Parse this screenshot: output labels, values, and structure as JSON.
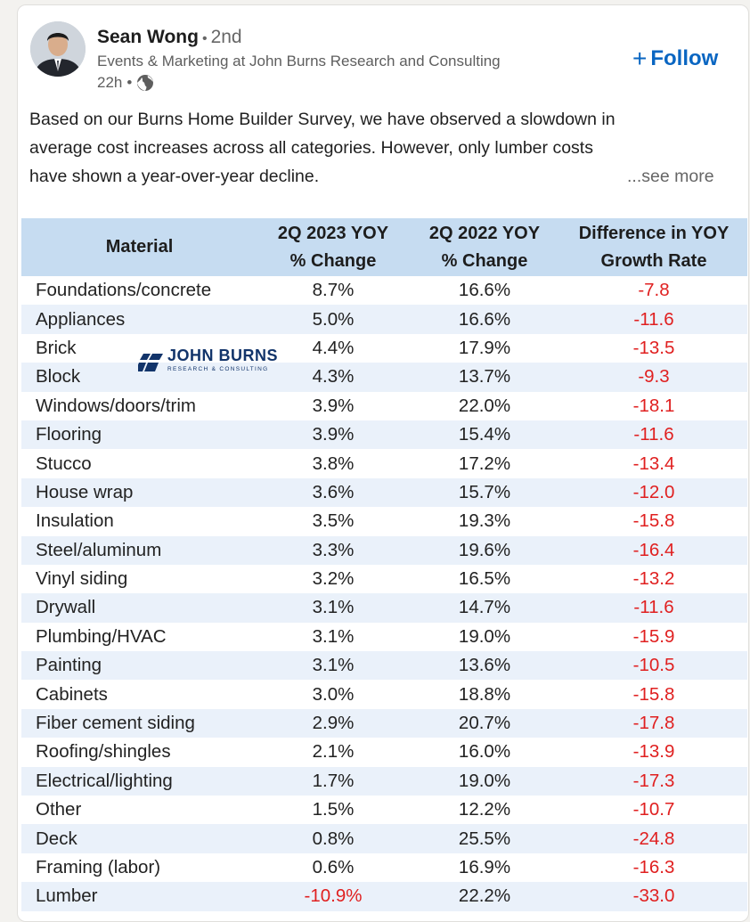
{
  "post": {
    "author": {
      "name": "Sean Wong",
      "degree": "2nd",
      "headline": "Events & Marketing at John Burns Research and Consulting",
      "time": "22h"
    },
    "follow_label": "Follow",
    "text_lines": [
      "Based on our Burns Home Builder Survey, we have observed a slowdown in",
      "average cost increases across all categories. However, only lumber costs",
      "have shown a year-over-year decline."
    ],
    "see_more": "...see more",
    "icons": {
      "avatar": "avatar-photo",
      "visibility": "globe-icon",
      "follow": "plus-icon"
    }
  },
  "table": {
    "headers": {
      "material": "Material",
      "y2023_line1": "2Q 2023 YOY",
      "y2023_line2": "% Change",
      "y2022_line1": "2Q 2022 YOY",
      "y2022_line2": "% Change",
      "diff_line1": "Difference in YOY",
      "diff_line2": "Growth Rate"
    },
    "logo": {
      "main": "JOHN BURNS",
      "sub": "RESEARCH & CONSULTING"
    },
    "colors": {
      "header_bg": "#c6dcf1",
      "alt_row_bg": "#eaf1fa",
      "negative": "#e02020",
      "accent": "#0a66c2"
    },
    "rows": [
      {
        "material": "Foundations/concrete",
        "y2023": "8.7%",
        "y2022": "16.6%",
        "diff": "-7.8"
      },
      {
        "material": "Appliances",
        "y2023": "5.0%",
        "y2022": "16.6%",
        "diff": "-11.6"
      },
      {
        "material": "Brick",
        "y2023": "4.4%",
        "y2022": "17.9%",
        "diff": "-13.5"
      },
      {
        "material": "Block",
        "y2023": "4.3%",
        "y2022": "13.7%",
        "diff": "-9.3"
      },
      {
        "material": "Windows/doors/trim",
        "y2023": "3.9%",
        "y2022": "22.0%",
        "diff": "-18.1"
      },
      {
        "material": "Flooring",
        "y2023": "3.9%",
        "y2022": "15.4%",
        "diff": "-11.6"
      },
      {
        "material": "Stucco",
        "y2023": "3.8%",
        "y2022": "17.2%",
        "diff": "-13.4"
      },
      {
        "material": "House wrap",
        "y2023": "3.6%",
        "y2022": "15.7%",
        "diff": "-12.0"
      },
      {
        "material": "Insulation",
        "y2023": "3.5%",
        "y2022": "19.3%",
        "diff": "-15.8"
      },
      {
        "material": "Steel/aluminum",
        "y2023": "3.3%",
        "y2022": "19.6%",
        "diff": "-16.4"
      },
      {
        "material": "Vinyl siding",
        "y2023": "3.2%",
        "y2022": "16.5%",
        "diff": "-13.2"
      },
      {
        "material": "Drywall",
        "y2023": "3.1%",
        "y2022": "14.7%",
        "diff": "-11.6"
      },
      {
        "material": "Plumbing/HVAC",
        "y2023": "3.1%",
        "y2022": "19.0%",
        "diff": "-15.9"
      },
      {
        "material": "Painting",
        "y2023": "3.1%",
        "y2022": "13.6%",
        "diff": "-10.5"
      },
      {
        "material": "Cabinets",
        "y2023": "3.0%",
        "y2022": "18.8%",
        "diff": "-15.8"
      },
      {
        "material": "Fiber cement siding",
        "y2023": "2.9%",
        "y2022": "20.7%",
        "diff": "-17.8"
      },
      {
        "material": "Roofing/shingles",
        "y2023": "2.1%",
        "y2022": "16.0%",
        "diff": "-13.9"
      },
      {
        "material": "Electrical/lighting",
        "y2023": "1.7%",
        "y2022": "19.0%",
        "diff": "-17.3"
      },
      {
        "material": "Other",
        "y2023": "1.5%",
        "y2022": "12.2%",
        "diff": "-10.7"
      },
      {
        "material": "Deck",
        "y2023": "0.8%",
        "y2022": "25.5%",
        "diff": "-24.8"
      },
      {
        "material": "Framing (labor)",
        "y2023": "0.6%",
        "y2022": "16.9%",
        "diff": "-16.3"
      },
      {
        "material": "Lumber",
        "y2023": "-10.9%",
        "y2022": "22.2%",
        "diff": "-33.0"
      }
    ]
  }
}
